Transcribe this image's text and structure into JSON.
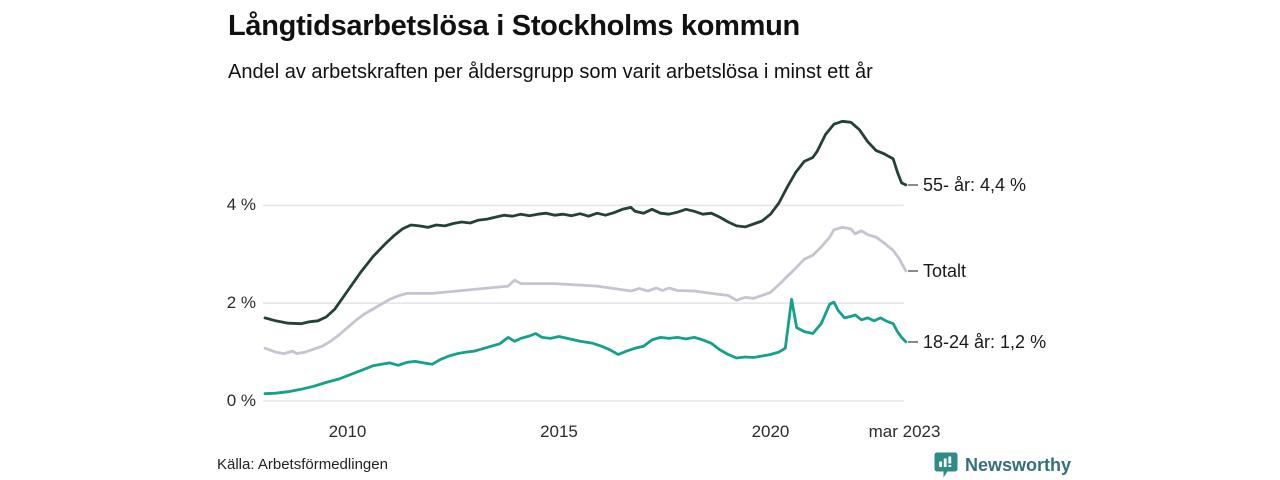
{
  "chart_data": {
    "type": "line",
    "title": "Långtidsarbetslösa i Stockholms kommun",
    "subtitle": "Andel av arbetskraften per åldersgrupp som varit arbetslösa i minst ett år",
    "grid": "horizontal",
    "legend_position": "end-of-line-labels-right",
    "xlim": [
      2008.05,
      2023.2
    ],
    "ylim": [
      0,
      6.0
    ],
    "x_unit": "year (monthly series, 2008 - mar 2023)",
    "y_unit": "percent of workforce",
    "y_ticks": [
      {
        "value": 0,
        "label": "0 %"
      },
      {
        "value": 2,
        "label": "2 %"
      },
      {
        "value": 4,
        "label": "4 %"
      }
    ],
    "x_ticks": [
      {
        "year": 2010,
        "label": "2010"
      },
      {
        "year": 2015,
        "label": "2015"
      },
      {
        "year": 2020,
        "label": "2020"
      },
      {
        "year": 2023.17,
        "label": "mar 2023"
      }
    ],
    "series": [
      {
        "name": "Totalt",
        "end_label": "Totalt",
        "end_value": 2.66,
        "color": "#c5c4d0",
        "points": [
          [
            2008.05,
            1.08
          ],
          [
            2008.3,
            1.0
          ],
          [
            2008.5,
            0.97
          ],
          [
            2008.7,
            1.02
          ],
          [
            2008.8,
            0.97
          ],
          [
            2009.0,
            1.0
          ],
          [
            2009.2,
            1.06
          ],
          [
            2009.4,
            1.12
          ],
          [
            2009.6,
            1.22
          ],
          [
            2009.8,
            1.35
          ],
          [
            2010.0,
            1.5
          ],
          [
            2010.2,
            1.65
          ],
          [
            2010.4,
            1.78
          ],
          [
            2010.6,
            1.88
          ],
          [
            2010.8,
            1.98
          ],
          [
            2011.0,
            2.08
          ],
          [
            2011.2,
            2.15
          ],
          [
            2011.4,
            2.2
          ],
          [
            2012.0,
            2.2
          ],
          [
            2012.6,
            2.25
          ],
          [
            2013.2,
            2.3
          ],
          [
            2013.8,
            2.35
          ],
          [
            2013.95,
            2.47
          ],
          [
            2014.1,
            2.4
          ],
          [
            2014.9,
            2.4
          ],
          [
            2015.3,
            2.38
          ],
          [
            2015.9,
            2.35
          ],
          [
            2016.3,
            2.3
          ],
          [
            2016.7,
            2.25
          ],
          [
            2016.9,
            2.3
          ],
          [
            2017.1,
            2.25
          ],
          [
            2017.3,
            2.31
          ],
          [
            2017.45,
            2.26
          ],
          [
            2017.6,
            2.31
          ],
          [
            2017.8,
            2.26
          ],
          [
            2018.2,
            2.25
          ],
          [
            2018.6,
            2.2
          ],
          [
            2019.0,
            2.16
          ],
          [
            2019.2,
            2.06
          ],
          [
            2019.4,
            2.12
          ],
          [
            2019.6,
            2.1
          ],
          [
            2019.8,
            2.16
          ],
          [
            2020.0,
            2.22
          ],
          [
            2020.2,
            2.38
          ],
          [
            2020.4,
            2.55
          ],
          [
            2020.6,
            2.72
          ],
          [
            2020.8,
            2.9
          ],
          [
            2021.0,
            2.98
          ],
          [
            2021.2,
            3.15
          ],
          [
            2021.4,
            3.35
          ],
          [
            2021.5,
            3.5
          ],
          [
            2021.7,
            3.55
          ],
          [
            2021.9,
            3.52
          ],
          [
            2022.0,
            3.42
          ],
          [
            2022.15,
            3.48
          ],
          [
            2022.3,
            3.4
          ],
          [
            2022.5,
            3.35
          ],
          [
            2022.7,
            3.22
          ],
          [
            2022.9,
            3.08
          ],
          [
            2023.05,
            2.9
          ],
          [
            2023.2,
            2.66
          ]
        ]
      },
      {
        "name": "55- år",
        "end_label": "55- år: 4,4 %",
        "end_value": 4.4,
        "color": "#234136",
        "points": [
          [
            2008.05,
            1.7
          ],
          [
            2008.3,
            1.64
          ],
          [
            2008.6,
            1.59
          ],
          [
            2008.9,
            1.58
          ],
          [
            2009.1,
            1.62
          ],
          [
            2009.3,
            1.64
          ],
          [
            2009.5,
            1.72
          ],
          [
            2009.7,
            1.88
          ],
          [
            2010.0,
            2.25
          ],
          [
            2010.3,
            2.62
          ],
          [
            2010.6,
            2.95
          ],
          [
            2010.9,
            3.22
          ],
          [
            2011.1,
            3.38
          ],
          [
            2011.3,
            3.52
          ],
          [
            2011.5,
            3.6
          ],
          [
            2011.7,
            3.58
          ],
          [
            2011.9,
            3.55
          ],
          [
            2012.1,
            3.6
          ],
          [
            2012.3,
            3.58
          ],
          [
            2012.5,
            3.63
          ],
          [
            2012.7,
            3.66
          ],
          [
            2012.9,
            3.64
          ],
          [
            2013.1,
            3.7
          ],
          [
            2013.3,
            3.72
          ],
          [
            2013.5,
            3.76
          ],
          [
            2013.7,
            3.8
          ],
          [
            2013.9,
            3.78
          ],
          [
            2014.1,
            3.82
          ],
          [
            2014.3,
            3.79
          ],
          [
            2014.5,
            3.82
          ],
          [
            2014.7,
            3.84
          ],
          [
            2014.9,
            3.8
          ],
          [
            2015.1,
            3.82
          ],
          [
            2015.3,
            3.79
          ],
          [
            2015.5,
            3.83
          ],
          [
            2015.7,
            3.78
          ],
          [
            2015.9,
            3.84
          ],
          [
            2016.1,
            3.8
          ],
          [
            2016.3,
            3.85
          ],
          [
            2016.5,
            3.92
          ],
          [
            2016.7,
            3.96
          ],
          [
            2016.8,
            3.88
          ],
          [
            2017.0,
            3.84
          ],
          [
            2017.2,
            3.92
          ],
          [
            2017.4,
            3.84
          ],
          [
            2017.6,
            3.82
          ],
          [
            2017.8,
            3.86
          ],
          [
            2018.0,
            3.92
          ],
          [
            2018.2,
            3.88
          ],
          [
            2018.4,
            3.82
          ],
          [
            2018.6,
            3.84
          ],
          [
            2018.8,
            3.76
          ],
          [
            2019.0,
            3.66
          ],
          [
            2019.2,
            3.58
          ],
          [
            2019.4,
            3.56
          ],
          [
            2019.6,
            3.62
          ],
          [
            2019.8,
            3.68
          ],
          [
            2020.0,
            3.82
          ],
          [
            2020.2,
            4.05
          ],
          [
            2020.4,
            4.38
          ],
          [
            2020.6,
            4.68
          ],
          [
            2020.8,
            4.9
          ],
          [
            2021.0,
            4.98
          ],
          [
            2021.1,
            5.1
          ],
          [
            2021.3,
            5.45
          ],
          [
            2021.5,
            5.66
          ],
          [
            2021.7,
            5.72
          ],
          [
            2021.9,
            5.7
          ],
          [
            2022.1,
            5.55
          ],
          [
            2022.3,
            5.3
          ],
          [
            2022.5,
            5.12
          ],
          [
            2022.7,
            5.05
          ],
          [
            2022.9,
            4.95
          ],
          [
            2023.0,
            4.68
          ],
          [
            2023.1,
            4.46
          ],
          [
            2023.2,
            4.42
          ]
        ]
      },
      {
        "name": "18-24 år",
        "end_label": "18-24 år: 1,2 %",
        "end_value": 1.2,
        "color": "#14a08a",
        "points": [
          [
            2008.05,
            0.15
          ],
          [
            2008.3,
            0.16
          ],
          [
            2008.6,
            0.19
          ],
          [
            2008.9,
            0.24
          ],
          [
            2009.2,
            0.3
          ],
          [
            2009.5,
            0.38
          ],
          [
            2009.8,
            0.45
          ],
          [
            2010.1,
            0.55
          ],
          [
            2010.4,
            0.65
          ],
          [
            2010.6,
            0.72
          ],
          [
            2010.8,
            0.75
          ],
          [
            2011.0,
            0.78
          ],
          [
            2011.2,
            0.73
          ],
          [
            2011.4,
            0.79
          ],
          [
            2011.6,
            0.81
          ],
          [
            2011.8,
            0.78
          ],
          [
            2012.0,
            0.75
          ],
          [
            2012.2,
            0.85
          ],
          [
            2012.4,
            0.92
          ],
          [
            2012.6,
            0.97
          ],
          [
            2012.8,
            1.0
          ],
          [
            2013.0,
            1.02
          ],
          [
            2013.2,
            1.07
          ],
          [
            2013.4,
            1.12
          ],
          [
            2013.6,
            1.17
          ],
          [
            2013.8,
            1.3
          ],
          [
            2013.95,
            1.22
          ],
          [
            2014.1,
            1.28
          ],
          [
            2014.3,
            1.33
          ],
          [
            2014.45,
            1.38
          ],
          [
            2014.6,
            1.3
          ],
          [
            2014.8,
            1.28
          ],
          [
            2015.0,
            1.32
          ],
          [
            2015.2,
            1.28
          ],
          [
            2015.5,
            1.22
          ],
          [
            2015.8,
            1.18
          ],
          [
            2016.0,
            1.12
          ],
          [
            2016.2,
            1.05
          ],
          [
            2016.4,
            0.95
          ],
          [
            2016.6,
            1.02
          ],
          [
            2016.8,
            1.08
          ],
          [
            2017.0,
            1.12
          ],
          [
            2017.2,
            1.25
          ],
          [
            2017.4,
            1.3
          ],
          [
            2017.6,
            1.28
          ],
          [
            2017.8,
            1.3
          ],
          [
            2018.0,
            1.27
          ],
          [
            2018.2,
            1.3
          ],
          [
            2018.4,
            1.25
          ],
          [
            2018.6,
            1.18
          ],
          [
            2018.8,
            1.05
          ],
          [
            2019.0,
            0.95
          ],
          [
            2019.2,
            0.88
          ],
          [
            2019.4,
            0.9
          ],
          [
            2019.6,
            0.89
          ],
          [
            2019.8,
            0.92
          ],
          [
            2020.0,
            0.95
          ],
          [
            2020.2,
            1.0
          ],
          [
            2020.35,
            1.08
          ],
          [
            2020.5,
            2.08
          ],
          [
            2020.62,
            1.5
          ],
          [
            2020.8,
            1.42
          ],
          [
            2021.0,
            1.38
          ],
          [
            2021.2,
            1.58
          ],
          [
            2021.4,
            1.98
          ],
          [
            2021.5,
            2.02
          ],
          [
            2021.6,
            1.85
          ],
          [
            2021.75,
            1.7
          ],
          [
            2021.9,
            1.73
          ],
          [
            2022.0,
            1.76
          ],
          [
            2022.15,
            1.66
          ],
          [
            2022.3,
            1.7
          ],
          [
            2022.45,
            1.64
          ],
          [
            2022.6,
            1.7
          ],
          [
            2022.75,
            1.63
          ],
          [
            2022.9,
            1.58
          ],
          [
            2023.0,
            1.42
          ],
          [
            2023.1,
            1.3
          ],
          [
            2023.2,
            1.21
          ]
        ]
      }
    ]
  },
  "footer": {
    "source": "Källa: Arbetsförmedlingen",
    "brand": "Newsworthy",
    "brand_color": "#2e8c85"
  },
  "colors": {
    "background": "#ffffff",
    "gridline": "#e6e5ea",
    "text": "#1a1a1a",
    "leader_dash": "#8a8a8a"
  }
}
